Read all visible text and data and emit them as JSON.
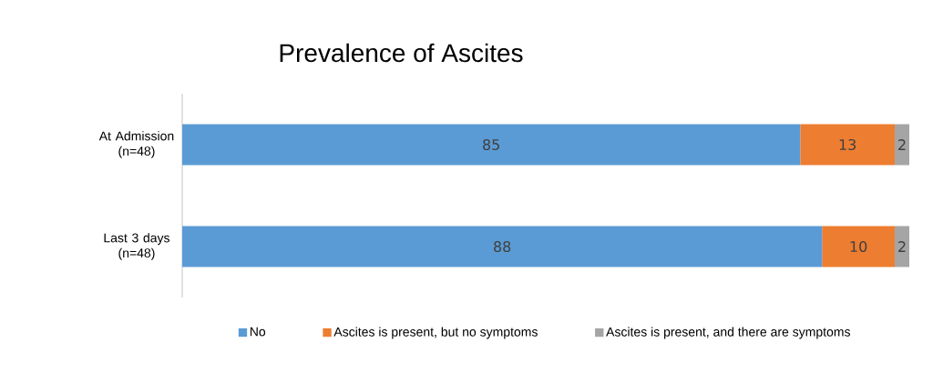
{
  "chart_data": {
    "type": "bar",
    "orientation": "horizontal",
    "stacked": true,
    "title": "Prevalence of Ascites",
    "categories": [
      "At Admission (n=48)",
      "Last 3 days (n=48)"
    ],
    "series": [
      {
        "name": "No",
        "color": "#5b9bd5",
        "values": [
          85,
          88
        ]
      },
      {
        "name": "Ascites is present, but no symptoms",
        "color": "#ed7d31",
        "values": [
          13,
          10
        ]
      },
      {
        "name": "Ascites is present, and there are symptoms",
        "color": "#a5a5a5",
        "values": [
          2,
          2
        ]
      }
    ],
    "data_labels": true,
    "legend": "bottom"
  }
}
